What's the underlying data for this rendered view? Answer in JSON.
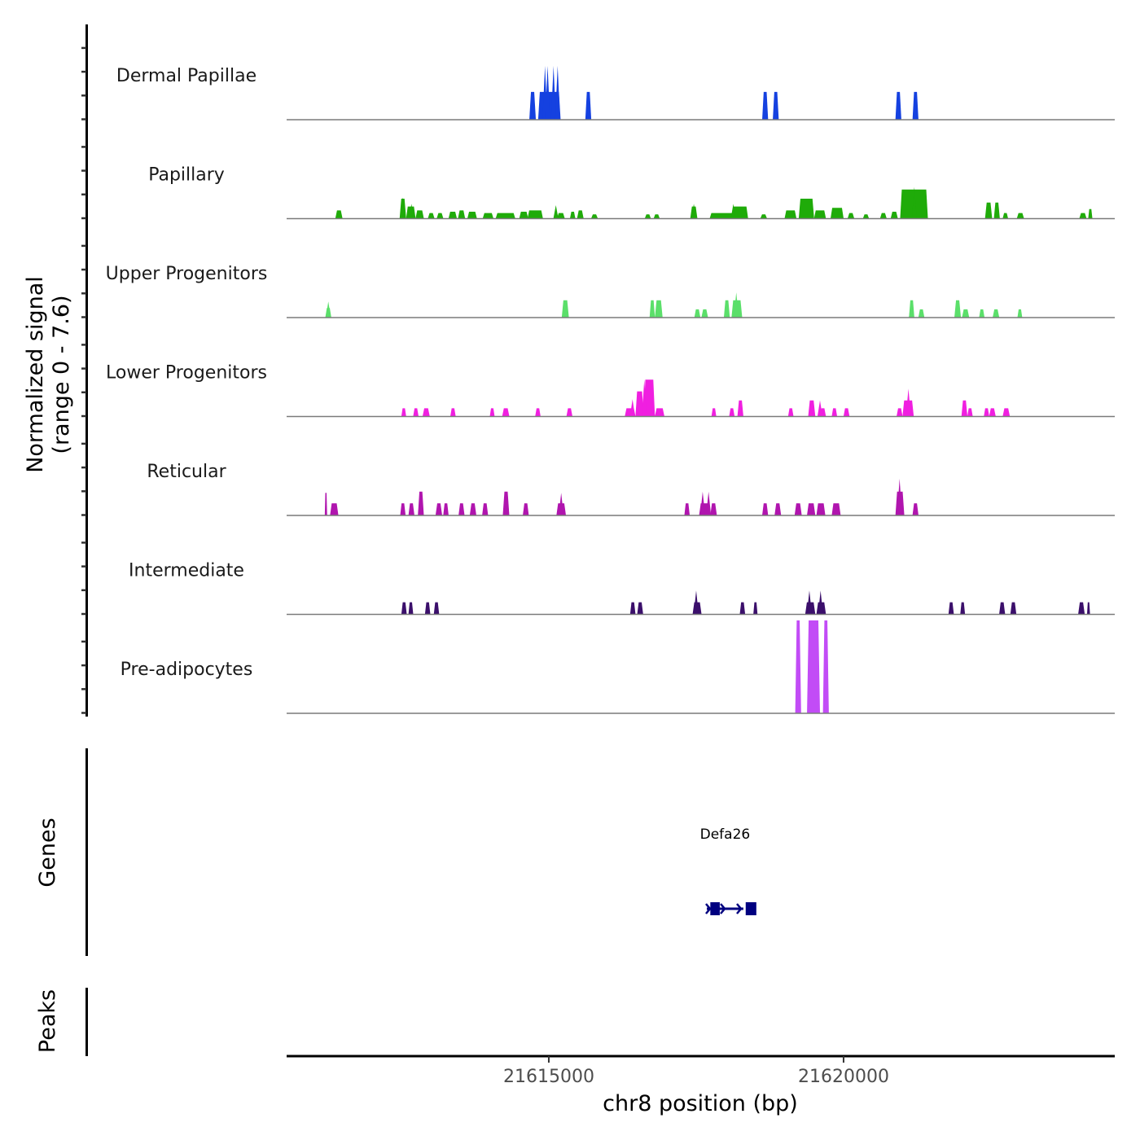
{
  "chart_data": {
    "type": "area",
    "title": "",
    "ylabel": "Normalized signal\n(range 0 - 7.6)",
    "ylabel_lines": [
      "Normalized signal",
      "(range 0 - 7.6)"
    ],
    "ylim": [
      0,
      7.6
    ],
    "xlabel": "chr8 position (bp)",
    "xlim": [
      21610553,
      21624600
    ],
    "xticks": [
      21615000,
      21620000
    ],
    "xtick_labels": [
      "21615000",
      "21620000"
    ],
    "genes_panel_label": "Genes",
    "peaks_panel_label": "Peaks",
    "tracks": [
      {
        "name": "Dermal Papillae",
        "color": "#1541E0",
        "peaks": [
          [
            21614670,
            21614780,
            2.1
          ],
          [
            21614820,
            21615200,
            2.1
          ],
          [
            21615620,
            21615720,
            2.1
          ],
          [
            21618620,
            21618720,
            2.1
          ],
          [
            21618800,
            21618900,
            2.1
          ],
          [
            21620880,
            21620980,
            2.1
          ],
          [
            21621170,
            21621270,
            2.1
          ]
        ],
        "spikes": [
          [
            21614935,
            4.1
          ],
          [
            21614980,
            4.1
          ],
          [
            21615080,
            4.1
          ],
          [
            21615150,
            4.1
          ]
        ]
      },
      {
        "name": "Papillary",
        "color": "#1FAB09",
        "peaks": [
          [
            21611380,
            21611500,
            0.6
          ],
          [
            21612470,
            21612580,
            1.5
          ],
          [
            21612580,
            21612740,
            0.9
          ],
          [
            21612740,
            21612880,
            0.6
          ],
          [
            21612950,
            21613060,
            0.4
          ],
          [
            21613100,
            21613210,
            0.4
          ],
          [
            21613300,
            21613440,
            0.5
          ],
          [
            21613460,
            21613580,
            0.6
          ],
          [
            21613620,
            21613780,
            0.5
          ],
          [
            21613880,
            21614060,
            0.4
          ],
          [
            21614100,
            21614430,
            0.4
          ],
          [
            21614500,
            21614650,
            0.5
          ],
          [
            21614640,
            21614900,
            0.6
          ],
          [
            21615140,
            21615270,
            0.4
          ],
          [
            21615360,
            21615450,
            0.5
          ],
          [
            21615480,
            21615590,
            0.6
          ],
          [
            21615720,
            21615830,
            0.3
          ],
          [
            21616630,
            21616730,
            0.3
          ],
          [
            21616780,
            21616880,
            0.3
          ],
          [
            21617400,
            21617520,
            0.9
          ],
          [
            21617730,
            21618170,
            0.4
          ],
          [
            21618100,
            21618380,
            0.9
          ],
          [
            21618590,
            21618700,
            0.3
          ],
          [
            21619000,
            21619200,
            0.6
          ],
          [
            21619240,
            21619500,
            1.5
          ],
          [
            21619500,
            21619700,
            0.6
          ],
          [
            21619780,
            21620000,
            0.8
          ],
          [
            21620070,
            21620180,
            0.4
          ],
          [
            21620330,
            21620430,
            0.3
          ],
          [
            21620620,
            21620730,
            0.4
          ],
          [
            21620800,
            21620920,
            0.5
          ],
          [
            21620960,
            21621430,
            2.2
          ],
          [
            21622400,
            21622520,
            1.2
          ],
          [
            21622550,
            21622650,
            1.2
          ],
          [
            21622700,
            21622790,
            0.4
          ],
          [
            21622940,
            21623060,
            0.4
          ],
          [
            21624000,
            21624120,
            0.4
          ],
          [
            21624150,
            21624220,
            0.7
          ]
        ],
        "spikes": [
          [
            21612520,
            1.6
          ],
          [
            21612670,
            1.1
          ],
          [
            21615120,
            1.0
          ],
          [
            21617460,
            1.1
          ],
          [
            21618130,
            1.1
          ],
          [
            21621200,
            2.4
          ]
        ]
      },
      {
        "name": "Upper Progenitors",
        "color": "#5BDF6A",
        "peaks": [
          [
            21611210,
            21611310,
            0.7
          ],
          [
            21615220,
            21615340,
            1.3
          ],
          [
            21616710,
            21616800,
            1.3
          ],
          [
            21616800,
            21616930,
            1.3
          ],
          [
            21617470,
            21617570,
            0.6
          ],
          [
            21617590,
            21617700,
            0.6
          ],
          [
            21617970,
            21618070,
            1.3
          ],
          [
            21618100,
            21618280,
            1.3
          ],
          [
            21621110,
            21621200,
            1.3
          ],
          [
            21621270,
            21621370,
            0.6
          ],
          [
            21621880,
            21621990,
            1.3
          ],
          [
            21622010,
            21622130,
            0.6
          ],
          [
            21622300,
            21622390,
            0.6
          ],
          [
            21622530,
            21622640,
            0.6
          ],
          [
            21622950,
            21623030,
            0.6
          ]
        ],
        "spikes": [
          [
            21611260,
            1.2
          ],
          [
            21618180,
            1.9
          ],
          [
            21621150,
            1.3
          ],
          [
            21621940,
            1.3
          ]
        ]
      },
      {
        "name": "Lower Progenitors",
        "color": "#F01FE0",
        "peaks": [
          [
            21612500,
            21612580,
            0.6
          ],
          [
            21612700,
            21612790,
            0.6
          ],
          [
            21612860,
            21612980,
            0.6
          ],
          [
            21613330,
            21613420,
            0.6
          ],
          [
            21614000,
            21614080,
            0.6
          ],
          [
            21614210,
            21614330,
            0.6
          ],
          [
            21614770,
            21614860,
            0.6
          ],
          [
            21615300,
            21615400,
            0.6
          ],
          [
            21616290,
            21616470,
            0.6
          ],
          [
            21616470,
            21616610,
            1.9
          ],
          [
            21616610,
            21616800,
            2.8
          ],
          [
            21616800,
            21616960,
            0.6
          ],
          [
            21617760,
            21617840,
            0.6
          ],
          [
            21618060,
            21618150,
            0.6
          ],
          [
            21618200,
            21618300,
            1.2
          ],
          [
            21619060,
            21619150,
            0.6
          ],
          [
            21619400,
            21619520,
            1.2
          ],
          [
            21619600,
            21619700,
            0.6
          ],
          [
            21619800,
            21619890,
            0.6
          ],
          [
            21620000,
            21620100,
            0.6
          ],
          [
            21620900,
            21621000,
            0.6
          ],
          [
            21621000,
            21621190,
            1.2
          ],
          [
            21622000,
            21622100,
            1.2
          ],
          [
            21622100,
            21622190,
            0.6
          ],
          [
            21622380,
            21622470,
            0.6
          ],
          [
            21622470,
            21622580,
            0.6
          ],
          [
            21622700,
            21622820,
            0.6
          ]
        ],
        "spikes": [
          [
            21616420,
            1.3
          ],
          [
            21616620,
            2.8
          ],
          [
            21616760,
            1.2
          ],
          [
            21619600,
            1.2
          ],
          [
            21621100,
            2.1
          ]
        ]
      },
      {
        "name": "Reticular",
        "color": "#B015AE",
        "peaks": [
          [
            21611200,
            21611240,
            1.7
          ],
          [
            21611290,
            21611430,
            0.9
          ],
          [
            21612480,
            21612570,
            0.9
          ],
          [
            21612620,
            21612720,
            0.9
          ],
          [
            21612780,
            21612880,
            1.8
          ],
          [
            21613080,
            21613190,
            0.9
          ],
          [
            21613210,
            21613300,
            0.9
          ],
          [
            21613470,
            21613570,
            0.9
          ],
          [
            21613660,
            21613770,
            0.9
          ],
          [
            21613870,
            21613970,
            0.9
          ],
          [
            21614220,
            21614330,
            1.8
          ],
          [
            21614560,
            21614660,
            0.9
          ],
          [
            21615130,
            21615290,
            0.9
          ],
          [
            21617300,
            21617390,
            0.9
          ],
          [
            21617550,
            21617740,
            0.9
          ],
          [
            21617740,
            21617850,
            0.9
          ],
          [
            21618620,
            21618720,
            0.9
          ],
          [
            21618830,
            21618940,
            0.9
          ],
          [
            21619170,
            21619290,
            0.9
          ],
          [
            21619380,
            21619520,
            0.9
          ],
          [
            21619540,
            21619690,
            0.9
          ],
          [
            21619800,
            21619950,
            0.9
          ],
          [
            21620880,
            21621030,
            1.8
          ],
          [
            21621170,
            21621270,
            0.9
          ]
        ],
        "spikes": [
          [
            21615210,
            1.7
          ],
          [
            21617610,
            1.8
          ],
          [
            21617710,
            1.8
          ],
          [
            21620950,
            2.8
          ]
        ]
      },
      {
        "name": "Intermediate",
        "color": "#3B0F6B",
        "peaks": [
          [
            21612500,
            21612590,
            0.9
          ],
          [
            21612620,
            21612700,
            0.9
          ],
          [
            21612900,
            21612990,
            0.9
          ],
          [
            21613050,
            21613140,
            0.9
          ],
          [
            21616380,
            21616470,
            0.9
          ],
          [
            21616500,
            21616600,
            0.9
          ],
          [
            21617440,
            21617590,
            0.9
          ],
          [
            21618240,
            21618330,
            0.9
          ],
          [
            21618470,
            21618540,
            0.9
          ],
          [
            21619350,
            21619520,
            0.9
          ],
          [
            21619540,
            21619700,
            0.9
          ],
          [
            21621780,
            21621870,
            0.9
          ],
          [
            21621980,
            21622060,
            0.9
          ],
          [
            21622640,
            21622740,
            0.9
          ],
          [
            21622830,
            21622930,
            0.9
          ],
          [
            21623980,
            21624090,
            0.9
          ],
          [
            21624130,
            21624180,
            0.9
          ]
        ],
        "spikes": [
          [
            21617500,
            1.8
          ],
          [
            21619420,
            1.8
          ],
          [
            21619610,
            1.8
          ]
        ]
      },
      {
        "name": "Pre-adipocytes",
        "color": "#C24CF6",
        "peaks": [
          [
            21619180,
            21619280,
            7.1
          ],
          [
            21619380,
            21619600,
            7.1
          ],
          [
            21619650,
            21619750,
            7.1
          ]
        ],
        "spikes": []
      }
    ],
    "genes": [
      {
        "name": "Defa26",
        "color": "#000080",
        "start": 21617680,
        "end": 21618300,
        "exons": [
          [
            21617740,
            21617900
          ],
          [
            21618340,
            21618520
          ]
        ],
        "strand": "+"
      }
    ],
    "peaks_track": []
  }
}
